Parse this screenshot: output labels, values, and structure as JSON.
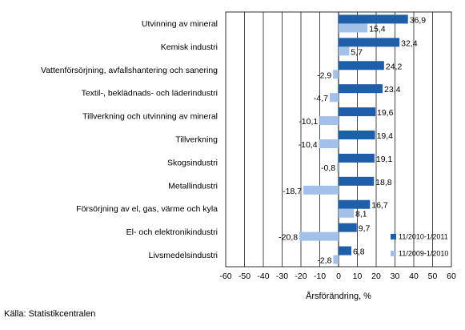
{
  "chart_data": {
    "type": "bar",
    "orientation": "horizontal",
    "categories": [
      "Utvinning av mineral",
      "Kemisk industri",
      "Vattenförsörjning, avfallshantering och sanering",
      "Textil-, beklädnads- och läderindustri",
      "Tillverkning och utvinning av mineral",
      "Tillverkning",
      "Skogsindustri",
      "Metallindustri",
      "Försörjning av el, gas, värme och kyla",
      "El- och elektronikindustri",
      "Livsmedelsindustri"
    ],
    "series": [
      {
        "name": "11/2010-1/2011",
        "color": "#1F5FA9",
        "values": [
          36.9,
          32.4,
          24.2,
          23.4,
          19.6,
          19.4,
          19.1,
          18.8,
          16.7,
          9.7,
          6.8
        ],
        "labels": [
          "36,9",
          "32,4",
          "24,2",
          "23,4",
          "19,6",
          "19,4",
          "19,1",
          "18,8",
          "16,7",
          "9,7",
          "6,8"
        ]
      },
      {
        "name": "11/2009-1/2010",
        "color": "#A3C1E8",
        "values": [
          15.4,
          5.7,
          -2.9,
          -4.7,
          -10.1,
          -10.4,
          -0.8,
          -18.7,
          8.1,
          -20.8,
          -2.8
        ],
        "labels": [
          "15,4",
          "5,7",
          "-2,9",
          "-4,7",
          "-10,1",
          "-10,4",
          "-0,8",
          "-18,7",
          "8,1",
          "-20,8",
          "-2,8"
        ]
      }
    ],
    "xlim": [
      -60,
      60
    ],
    "xticks": [
      -60,
      -50,
      -40,
      -30,
      -20,
      -10,
      0,
      10,
      20,
      30,
      40,
      50,
      60
    ],
    "xlabel": "Årsförändring, %",
    "grid": "vertical",
    "legend": "bottom-right"
  },
  "source": "Källa: Statistikcentralen"
}
